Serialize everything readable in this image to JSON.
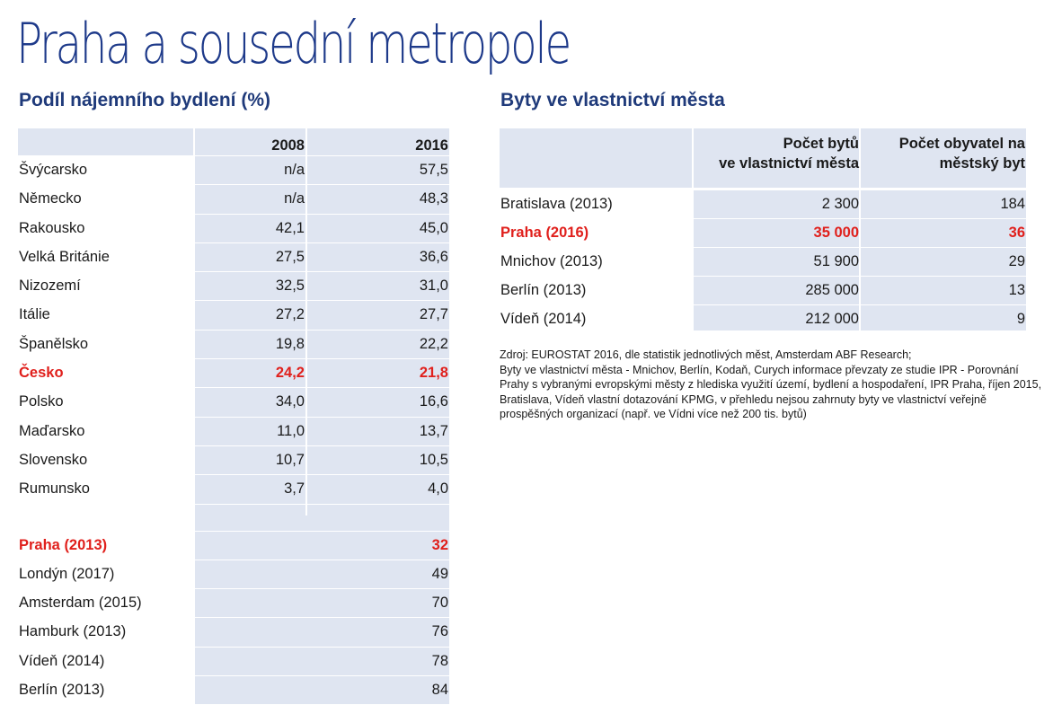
{
  "title": "Praha a sousední metropole",
  "left": {
    "heading": "Podíl nájemního bydlení (%)",
    "col_a": "2008",
    "col_b": "2016",
    "rows": [
      {
        "label": "Švýcarsko",
        "a": "n/a",
        "b": "57,5"
      },
      {
        "label": "Německo",
        "a": "n/a",
        "b": "48,3"
      },
      {
        "label": "Rakousko",
        "a": "42,1",
        "b": "45,0"
      },
      {
        "label": "Velká Británie",
        "a": "27,5",
        "b": "36,6"
      },
      {
        "label": "Nizozemí",
        "a": "32,5",
        "b": "31,0"
      },
      {
        "label": "Itálie",
        "a": "27,2",
        "b": "27,7"
      },
      {
        "label": "Španělsko",
        "a": "19,8",
        "b": "22,2"
      },
      {
        "label": "Česko",
        "a": "24,2",
        "b": "21,8"
      },
      {
        "label": "Polsko",
        "a": "34,0",
        "b": "16,6"
      },
      {
        "label": "Maďarsko",
        "a": "11,0",
        "b": "13,7"
      },
      {
        "label": "Slovensko",
        "a": "10,7",
        "b": "10,5"
      },
      {
        "label": "Rumunsko",
        "a": "3,7",
        "b": "4,0"
      }
    ],
    "cities": [
      {
        "label": "Praha (2013)",
        "b": "32"
      },
      {
        "label": "Londýn (2017)",
        "b": "49"
      },
      {
        "label": "Amsterdam (2015)",
        "b": "70"
      },
      {
        "label": "Hamburk (2013)",
        "b": "76"
      },
      {
        "label": "Vídeň (2014)",
        "b": "78"
      },
      {
        "label": "Berlín (2013)",
        "b": "84"
      }
    ]
  },
  "right": {
    "heading": "Byty ve vlastnictví města",
    "col_a": "Počet bytů\nve vlastnictví města",
    "col_b": "Počet obyvatel na\nměstský byt",
    "rows": [
      {
        "label": "Bratislava (2013)",
        "a": "2 300",
        "b": "184"
      },
      {
        "label": "Praha (2016)",
        "a": "35 000",
        "b": "36"
      },
      {
        "label": "Mnichov (2013)",
        "a": "51 900",
        "b": "29"
      },
      {
        "label": "Berlín (2013)",
        "a": "285 000",
        "b": "13"
      },
      {
        "label": "Vídeň (2014)",
        "a": "212 000",
        "b": "9"
      }
    ],
    "note_1": "Zdroj: EUROSTAT 2016, dle statistik jednotlivých měst,  Amsterdam ABF Research;",
    "note_2": "Byty ve vlastnictví města - Mnichov, Berlín, Kodaň, Curych informace převzaty ze studie IPR - Porovnání Prahy s vybranými evropskými městy z hlediska využití území, bydlení a hospodaření, IPR Praha, říjen 2015, Bratislava, Vídeň vlastní dotazování KPMG, v přehledu nejsou zahrnuty byty ve vlastnictví veřejně prospěšných organizací (např. ve Vídni více než 200 tis. bytů)"
  },
  "colors": {
    "title": "#1e3a8a",
    "heading": "#1f3a7a",
    "highlight": "#e0201c",
    "cell_bg": "#dfe5f1"
  }
}
